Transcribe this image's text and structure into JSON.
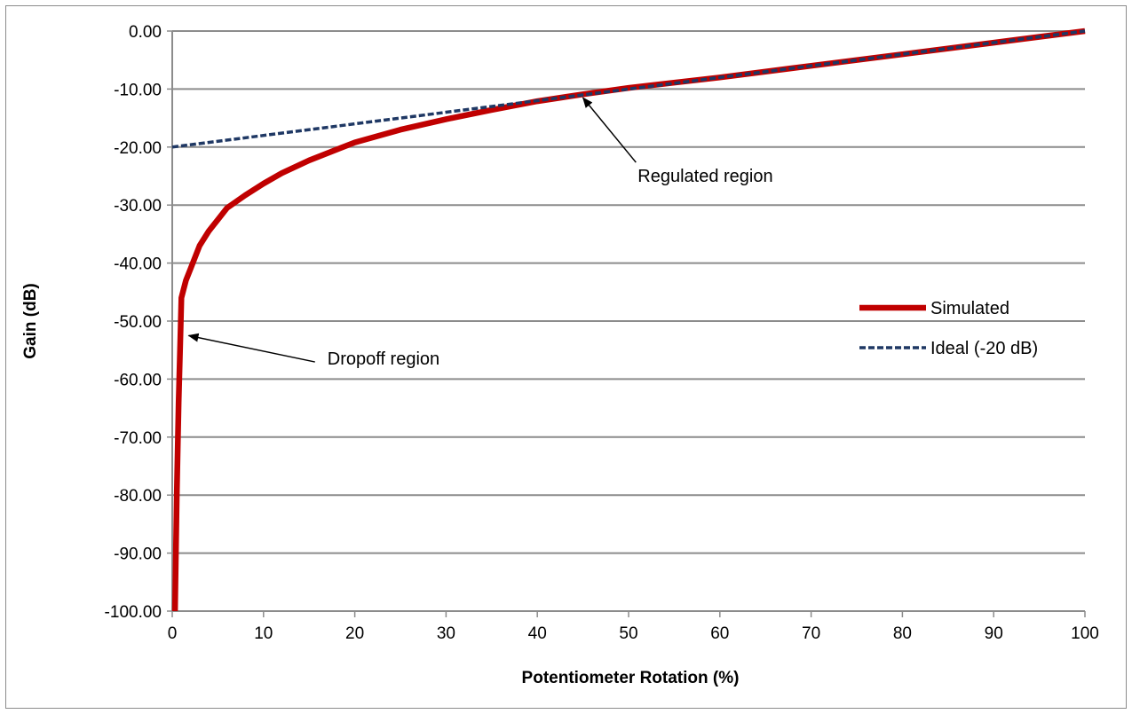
{
  "chart_data": {
    "type": "line",
    "title": "",
    "xlabel": "Potentiometer Rotation (%)",
    "ylabel": "Gain (dB)",
    "xlim": [
      0,
      100
    ],
    "ylim": [
      -100,
      0
    ],
    "x_ticks": [
      "0",
      "10",
      "20",
      "30",
      "40",
      "50",
      "60",
      "70",
      "80",
      "90",
      "100"
    ],
    "y_ticks": [
      "0.00",
      "-10.00",
      "-20.00",
      "-30.00",
      "-40.00",
      "-50.00",
      "-60.00",
      "-70.00",
      "-80.00",
      "-90.00",
      "-100.00"
    ],
    "grid": "horizontal",
    "legend_position": "right",
    "series": [
      {
        "name": "Simulated",
        "color": "#c00000",
        "style": "solid",
        "x": [
          0.3,
          0.5,
          0.7,
          0.9,
          1,
          1.5,
          2,
          3,
          4,
          5,
          6,
          8,
          10,
          12,
          15,
          20,
          25,
          30,
          35,
          40,
          45,
          50,
          60,
          70,
          80,
          90,
          100
        ],
        "y": [
          -100,
          -80,
          -64,
          -52,
          -46,
          -43,
          -41,
          -37,
          -34.5,
          -32.5,
          -30.5,
          -28.3,
          -26.3,
          -24.5,
          -22.3,
          -19.2,
          -17,
          -15.2,
          -13.6,
          -12.1,
          -10.9,
          -9.8,
          -8,
          -6,
          -4,
          -2,
          0
        ]
      },
      {
        "name": "Ideal (-20 dB)",
        "color": "#1f3864",
        "style": "dashed",
        "x": [
          0,
          100
        ],
        "y": [
          -20,
          0
        ]
      }
    ],
    "annotations": [
      {
        "text": "Regulated region",
        "target_x": 45,
        "target_y": -11.5,
        "label_x": 51,
        "label_y": -26
      },
      {
        "text": "Dropoff region",
        "target_x": 1.8,
        "target_y": -52.5,
        "label_x": 17,
        "label_y": -57.5
      }
    ]
  }
}
